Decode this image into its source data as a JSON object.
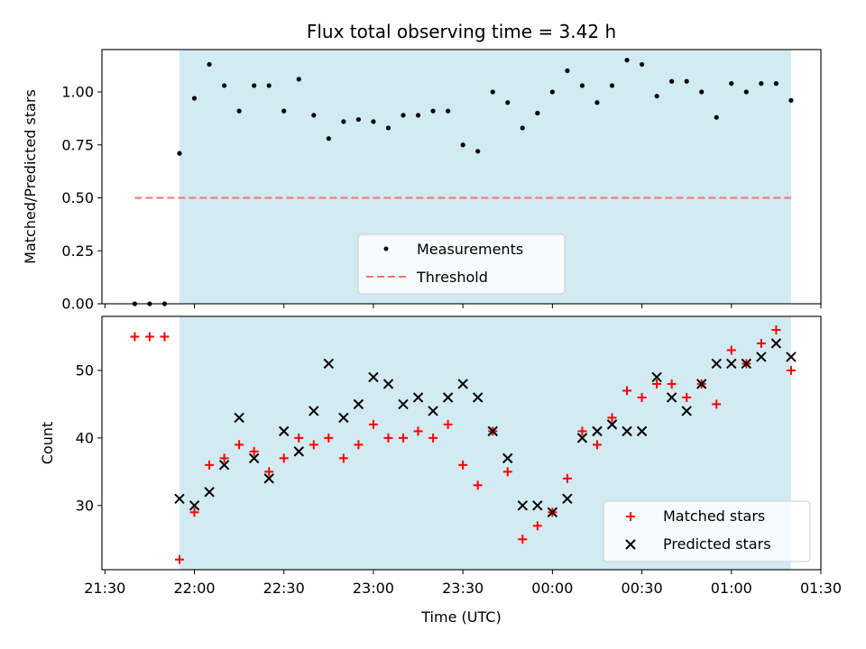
{
  "chart_data": [
    {
      "type": "scatter",
      "title": "Flux total observing time = 3.42 h",
      "xlabel": "",
      "ylabel": "Matched/Predicted stars",
      "ylim": [
        0,
        1.2
      ],
      "yticks": [
        "0.00",
        "0.25",
        "0.50",
        "0.75",
        "1.00"
      ],
      "observing_window": [
        "21:55",
        "01:20"
      ],
      "colors": {
        "band": "#add8e6",
        "measurements": "#000000",
        "threshold": "#ff6e6e"
      },
      "legend": {
        "position": "lower-center",
        "entries": [
          "Measurements",
          "Threshold"
        ]
      },
      "series": [
        {
          "name": "Measurements",
          "x": [
            "21:40",
            "21:45",
            "21:50",
            "21:55",
            "22:00",
            "22:05",
            "22:10",
            "22:15",
            "22:20",
            "22:25",
            "22:30",
            "22:35",
            "22:40",
            "22:45",
            "22:50",
            "22:55",
            "23:00",
            "23:05",
            "23:10",
            "23:15",
            "23:20",
            "23:25",
            "23:30",
            "23:35",
            "23:40",
            "23:45",
            "23:50",
            "23:55",
            "00:00",
            "00:05",
            "00:10",
            "00:15",
            "00:20",
            "00:25",
            "00:30",
            "00:35",
            "00:40",
            "00:45",
            "00:50",
            "00:55",
            "01:00",
            "01:05",
            "01:10",
            "01:15",
            "01:20"
          ],
          "values": [
            0.0,
            0.0,
            0.0,
            0.71,
            0.97,
            1.13,
            1.03,
            0.91,
            1.03,
            1.03,
            0.91,
            1.06,
            0.89,
            0.78,
            0.86,
            0.87,
            0.86,
            0.83,
            0.89,
            0.89,
            0.91,
            0.91,
            0.75,
            0.72,
            1.0,
            0.95,
            0.83,
            0.9,
            1.0,
            1.1,
            1.03,
            0.95,
            1.03,
            1.15,
            1.13,
            0.98,
            1.05,
            1.05,
            1.0,
            0.88,
            1.04,
            1.0,
            1.04,
            1.04,
            0.96
          ]
        },
        {
          "name": "Threshold",
          "x": [
            "21:40",
            "01:20"
          ],
          "values": [
            0.5,
            0.5
          ]
        }
      ]
    },
    {
      "type": "scatter",
      "title": "",
      "xlabel": "Time (UTC)",
      "ylabel": "Count",
      "ylim": [
        20.5,
        58
      ],
      "yticks": [
        "30",
        "40",
        "50"
      ],
      "xticks": [
        "21:30",
        "22:00",
        "22:30",
        "23:00",
        "23:30",
        "00:00",
        "00:30",
        "01:00",
        "01:30"
      ],
      "xlim": [
        "21:29",
        "01:30"
      ],
      "colors": {
        "band": "#add8e6",
        "matched": "#ff0000",
        "predicted": "#000000"
      },
      "legend": {
        "position": "lower-right",
        "entries": [
          "Matched stars",
          "Predicted stars"
        ]
      },
      "x": [
        "21:40",
        "21:45",
        "21:50",
        "21:55",
        "22:00",
        "22:05",
        "22:10",
        "22:15",
        "22:20",
        "22:25",
        "22:30",
        "22:35",
        "22:40",
        "22:45",
        "22:50",
        "22:55",
        "23:00",
        "23:05",
        "23:10",
        "23:15",
        "23:20",
        "23:25",
        "23:30",
        "23:35",
        "23:40",
        "23:45",
        "23:50",
        "23:55",
        "00:00",
        "00:05",
        "00:10",
        "00:15",
        "00:20",
        "00:25",
        "00:30",
        "00:35",
        "00:40",
        "00:45",
        "00:50",
        "00:55",
        "01:00",
        "01:05",
        "01:10",
        "01:15",
        "01:20"
      ],
      "series": [
        {
          "name": "Matched stars",
          "values": [
            55,
            55,
            55,
            22,
            29,
            36,
            37,
            39,
            38,
            35,
            37,
            40,
            39,
            40,
            37,
            39,
            42,
            40,
            40,
            41,
            40,
            42,
            36,
            33,
            41,
            35,
            25,
            27,
            29,
            34,
            41,
            39,
            43,
            47,
            46,
            48,
            48,
            46,
            48,
            45,
            53,
            51,
            54,
            56,
            50
          ]
        },
        {
          "name": "Predicted stars",
          "values": [
            null,
            null,
            null,
            31,
            30,
            32,
            36,
            43,
            37,
            34,
            41,
            38,
            44,
            51,
            43,
            45,
            49,
            48,
            45,
            46,
            44,
            46,
            48,
            46,
            41,
            37,
            30,
            30,
            29,
            31,
            40,
            41,
            42,
            41,
            41,
            49,
            46,
            44,
            48,
            51,
            51,
            51,
            52,
            54,
            52
          ]
        }
      ]
    }
  ]
}
